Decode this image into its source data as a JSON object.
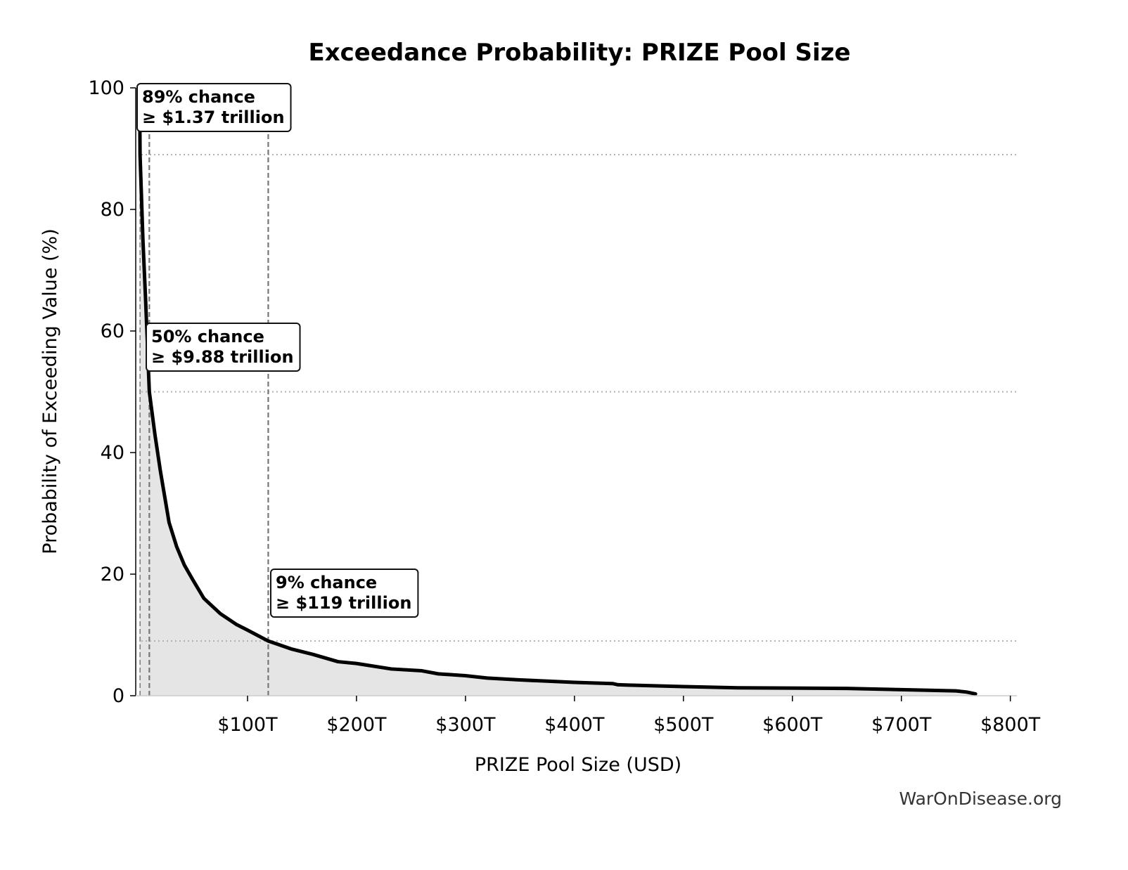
{
  "chart_data": {
    "type": "area",
    "title": "Exceedance Probability: PRIZE Pool Size",
    "xlabel": "PRIZE Pool Size (USD)",
    "ylabel": "Probability of Exceeding Value (%)",
    "xlim": [
      -2.6,
      806
    ],
    "ylim": [
      0,
      100
    ],
    "x_unit": "trillion USD",
    "xticks": [
      100,
      200,
      300,
      400,
      500,
      600,
      700,
      800
    ],
    "xtick_labels": [
      "$100T",
      "$200T",
      "$300T",
      "$400T",
      "$500T",
      "$600T",
      "$700T",
      "$800T"
    ],
    "yticks": [
      0,
      20,
      40,
      60,
      80,
      100
    ],
    "ytick_labels": [
      "0",
      "20",
      "40",
      "60",
      "80",
      "100"
    ],
    "grid": false,
    "colors": {
      "line": "#000000",
      "fill": "#e5e5e5",
      "reference": "#777777",
      "threshold": "#b0b0b0"
    },
    "series": [
      {
        "x": [
          1,
          1.37,
          4,
          6.5,
          9.88,
          15,
          20,
          28,
          35,
          42,
          50,
          60,
          75,
          90,
          100,
          119,
          140,
          160,
          183,
          200,
          232,
          260,
          275,
          300,
          320,
          350,
          400,
          435,
          440,
          500,
          550,
          650,
          700,
          750,
          760,
          768
        ],
        "y": [
          100,
          89,
          75,
          65,
          50,
          43,
          37,
          28.5,
          24.5,
          21.5,
          19,
          16,
          13.5,
          11.7,
          10.8,
          9,
          7.7,
          6.8,
          5.6,
          5.3,
          4.4,
          4.1,
          3.6,
          3.3,
          2.9,
          2.6,
          2.2,
          2.0,
          1.8,
          1.5,
          1.3,
          1.2,
          1.0,
          0.8,
          0.6,
          0.3
        ]
      }
    ],
    "annotations": [
      {
        "x": 1.37,
        "y": 89,
        "line1": "89% chance",
        "line2": "≥ $1.37 trillion"
      },
      {
        "x": 9.88,
        "y": 50,
        "line1": "50% chance",
        "line2": "≥ $9.88 trillion"
      },
      {
        "x": 119,
        "y": 9,
        "line1": "9% chance",
        "line2": "≥ $119 trillion"
      }
    ]
  },
  "watermark": "WarOnDisease.org"
}
